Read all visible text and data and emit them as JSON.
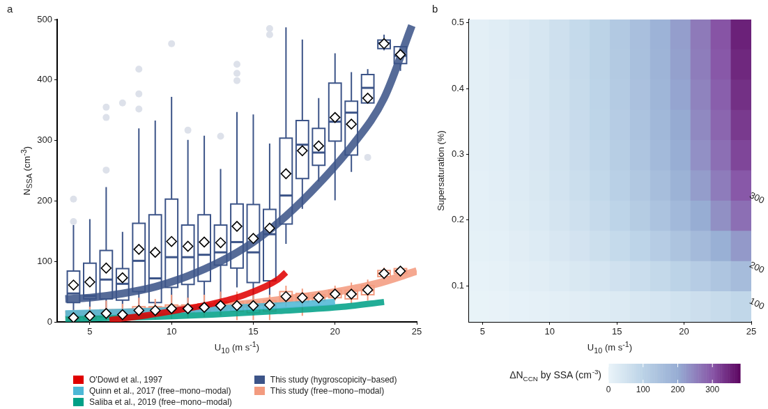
{
  "chart_data": [
    {
      "type": "box",
      "title": "a",
      "xlabel": "U$_{10}$ (m s$^{-1}$)",
      "ylabel": "N$_{SSA}$ (cm$^{-3}$)",
      "xlim": [
        3,
        25
      ],
      "xticks": [
        5,
        10,
        15,
        20,
        25
      ],
      "ylim": [
        0,
        500
      ],
      "yticks": [
        0,
        100,
        200,
        300,
        400,
        500
      ],
      "legend": "bottom",
      "series": [
        {
          "name": "O'Dowd et al., 1997",
          "type": "line",
          "color": "#e00000",
          "x": [
            6.2,
            8.5,
            10.5,
            12.5,
            14.5,
            16.5,
            17
          ],
          "values": [
            3,
            11,
            20,
            30,
            45,
            70,
            82
          ]
        },
        {
          "name": "Quinn et al., 2017 (free−mono−modal)",
          "type": "line",
          "color": "#4db8d6",
          "x": [
            3.5,
            8.5,
            12.5,
            16.5,
            20
          ],
          "values": [
            14,
            18,
            22,
            27,
            33
          ]
        },
        {
          "name": "Saliba et al., 2019 (free−mono−modal)",
          "type": "line",
          "color": "#00a087",
          "x": [
            3.5,
            8.5,
            12.5,
            16.5,
            20.5,
            23
          ],
          "values": [
            5,
            8,
            12,
            18,
            25,
            33
          ]
        },
        {
          "name": "This study (hygroscopicity−based)",
          "type": "box",
          "color": "#3c5488",
          "x": [
            4,
            5,
            6,
            7,
            8,
            9,
            10,
            11,
            12,
            13,
            14,
            15,
            16,
            17,
            18,
            19,
            20,
            21,
            22,
            23,
            24
          ],
          "boxes": [
            {
              "low": 7,
              "q1": 32,
              "median": 47,
              "q3": 84,
              "high": 160,
              "mean": 61,
              "outliers": [
                166,
                203
              ]
            },
            {
              "low": 11,
              "q1": 38,
              "median": 43,
              "q3": 97,
              "high": 170,
              "mean": 66
            },
            {
              "low": 15,
              "q1": 38,
              "median": 70,
              "q3": 118,
              "high": 223,
              "mean": 89,
              "outliers": [
                251,
                338,
                355
              ]
            },
            {
              "low": 11,
              "q1": 36,
              "median": 63,
              "q3": 88,
              "high": 149,
              "mean": 73,
              "outliers": [
                362
              ]
            },
            {
              "low": 15,
              "q1": 50,
              "median": 101,
              "q3": 163,
              "high": 320,
              "mean": 120,
              "outliers": [
                352,
                377,
                418
              ]
            },
            {
              "low": 11,
              "q1": 32,
              "median": 72,
              "q3": 177,
              "high": 333,
              "mean": 115
            },
            {
              "low": 15,
              "q1": 57,
              "median": 107,
              "q3": 203,
              "high": 372,
              "mean": 133,
              "outliers": [
                460
              ]
            },
            {
              "low": 11,
              "q1": 62,
              "median": 107,
              "q3": 160,
              "high": 301,
              "mean": 125,
              "outliers": [
                317
              ]
            },
            {
              "low": 15,
              "q1": 67,
              "median": 111,
              "q3": 177,
              "high": 308,
              "mean": 132
            },
            {
              "low": 11,
              "q1": 94,
              "median": 115,
              "q3": 160,
              "high": 253,
              "mean": 131,
              "outliers": [
                307
              ]
            },
            {
              "low": 57,
              "q1": 89,
              "median": 132,
              "q3": 195,
              "high": 347,
              "mean": 158,
              "outliers": [
                399,
                411,
                426
              ]
            },
            {
              "low": 11,
              "q1": 65,
              "median": 115,
              "q3": 194,
              "high": 343,
              "mean": 138
            },
            {
              "low": 30,
              "q1": 68,
              "median": 145,
              "q3": 186,
              "high": 295,
              "mean": 155,
              "outliers": [
                475,
                485
              ]
            },
            {
              "low": 129,
              "q1": 162,
              "median": 209,
              "q3": 304,
              "high": 487,
              "mean": 245
            },
            {
              "low": 187,
              "q1": 237,
              "median": 293,
              "q3": 333,
              "high": 467,
              "mean": 283
            },
            {
              "low": 232,
              "q1": 259,
              "median": 280,
              "q3": 320,
              "high": 370,
              "mean": 291
            },
            {
              "low": 201,
              "q1": 299,
              "median": 331,
              "q3": 395,
              "high": 444,
              "mean": 338
            },
            {
              "low": 248,
              "q1": 276,
              "median": 346,
              "q3": 365,
              "high": 413,
              "mean": 327
            },
            {
              "low": 362,
              "q1": 362,
              "median": 387,
              "q3": 409,
              "high": 418,
              "mean": 370,
              "outliers": [
                272
              ]
            },
            {
              "low": 449,
              "q1": 452,
              "median": 461,
              "q3": 466,
              "high": 475,
              "mean": 460
            },
            {
              "low": 415,
              "q1": 427,
              "median": 440,
              "q3": 455,
              "high": 455,
              "mean": 442
            }
          ]
        },
        {
          "name": "This study (free−mono−modal)",
          "type": "box",
          "color": "#f39b7f",
          "x": [
            4,
            5,
            6,
            7,
            8,
            9,
            10,
            11,
            12,
            13,
            14,
            15,
            16,
            17,
            18,
            19,
            20,
            21,
            22,
            23,
            24
          ],
          "boxes": [
            {
              "low": 0,
              "q1": 3,
              "median": 6,
              "q3": 10,
              "high": 20,
              "mean": 7
            },
            {
              "low": 0,
              "q1": 5,
              "median": 9,
              "q3": 14,
              "high": 25,
              "mean": 10
            },
            {
              "low": 2,
              "q1": 8,
              "median": 13,
              "q3": 20,
              "high": 35,
              "mean": 14
            },
            {
              "low": 2,
              "q1": 7,
              "median": 11,
              "q3": 17,
              "high": 30,
              "mean": 12
            },
            {
              "low": 5,
              "q1": 12,
              "median": 18,
              "q3": 25,
              "high": 40,
              "mean": 19
            },
            {
              "low": 4,
              "q1": 12,
              "median": 18,
              "q3": 25,
              "high": 38,
              "mean": 19
            },
            {
              "low": 5,
              "q1": 15,
              "median": 21,
              "q3": 28,
              "high": 45,
              "mean": 22
            },
            {
              "low": 6,
              "q1": 16,
              "median": 21,
              "q3": 28,
              "high": 40,
              "mean": 22
            },
            {
              "low": 8,
              "q1": 18,
              "median": 23,
              "q3": 30,
              "high": 45,
              "mean": 24
            },
            {
              "low": 10,
              "q1": 20,
              "median": 26,
              "q3": 33,
              "high": 50,
              "mean": 27
            },
            {
              "low": 3,
              "q1": 18,
              "median": 25,
              "q3": 33,
              "high": 50,
              "mean": 27
            },
            {
              "low": 3,
              "q1": 15,
              "median": 25,
              "q3": 33,
              "high": 45,
              "mean": 27
            },
            {
              "low": 3,
              "q1": 18,
              "median": 27,
              "q3": 35,
              "high": 45,
              "mean": 28
            },
            {
              "low": 25,
              "q1": 35,
              "median": 42,
              "q3": 50,
              "high": 60,
              "mean": 42
            },
            {
              "low": 10,
              "q1": 33,
              "median": 40,
              "q3": 47,
              "high": 55,
              "mean": 40
            },
            {
              "low": 30,
              "q1": 35,
              "median": 40,
              "q3": 45,
              "high": 50,
              "mean": 40
            },
            {
              "low": 35,
              "q1": 40,
              "median": 46,
              "q3": 52,
              "high": 60,
              "mean": 46
            },
            {
              "low": 30,
              "q1": 38,
              "median": 46,
              "q3": 52,
              "high": 65,
              "mean": 46
            },
            {
              "low": 35,
              "q1": 45,
              "median": 52,
              "q3": 60,
              "high": 70,
              "mean": 53
            },
            {
              "low": 70,
              "q1": 75,
              "median": 80,
              "q3": 85,
              "high": 90,
              "mean": 80
            },
            {
              "low": 75,
              "q1": 80,
              "median": 84,
              "q3": 88,
              "high": 92,
              "mean": 84
            }
          ]
        },
        {
          "type": "line",
          "color": "#3c5488",
          "x": [
            3.5,
            5,
            7,
            9,
            11,
            13,
            15,
            17,
            19,
            21,
            23,
            24.7
          ],
          "values": [
            38,
            40,
            47,
            58,
            76,
            100,
            132,
            175,
            228,
            290,
            370,
            490
          ]
        },
        {
          "type": "line",
          "color": "#f39b7f",
          "x": [
            3.5,
            7.5,
            10.5,
            13.5,
            16.5,
            19.5,
            22.5,
            25
          ],
          "values": [
            12,
            16,
            21,
            27,
            36,
            47,
            63,
            84
          ]
        }
      ]
    },
    {
      "type": "heatmap",
      "title": "b",
      "xlabel": "U$_{10}$ (m s$^{-1}$)",
      "ylabel": "Supersaturation (%)",
      "clabel": "ΔN$_{CCN}$ by SSA (cm$^{-3}$)",
      "xlim": [
        4,
        25
      ],
      "xticks": [
        5,
        10,
        15,
        20,
        25
      ],
      "ylim": [
        0.045,
        0.505
      ],
      "yticks": [
        0.1,
        0.2,
        0.3,
        0.4,
        0.5
      ],
      "clim": [
        0,
        380
      ],
      "cticks": [
        0,
        100,
        200,
        300
      ],
      "x": [
        4.75,
        6.25,
        7.75,
        9.25,
        10.75,
        12.25,
        13.75,
        15.25,
        16.75,
        18.25,
        19.75,
        21.25,
        22.75,
        24.25
      ],
      "y": [
        0.482,
        0.436,
        0.39,
        0.344,
        0.298,
        0.252,
        0.206,
        0.16,
        0.114,
        0.068
      ],
      "cells": [
        [
          15,
          21,
          32,
          43,
          60,
          79,
          100,
          125,
          151,
          183,
          217,
          259,
          302,
          352
        ],
        [
          15,
          20,
          32,
          43,
          60,
          78,
          99,
          123,
          149,
          180,
          214,
          255,
          298,
          346
        ],
        [
          15,
          20,
          31,
          42,
          58,
          76,
          96,
          120,
          145,
          176,
          209,
          249,
          290,
          338
        ],
        [
          14,
          19,
          30,
          41,
          56,
          74,
          94,
          116,
          141,
          171,
          203,
          242,
          282,
          328
        ],
        [
          14,
          19,
          29,
          39,
          54,
          71,
          90,
          112,
          136,
          165,
          196,
          233,
          272,
          316
        ],
        [
          13,
          18,
          27,
          37,
          51,
          67,
          85,
          106,
          128,
          155,
          184,
          219,
          256,
          298
        ],
        [
          12,
          16,
          25,
          34,
          47,
          61,
          77,
          96,
          117,
          142,
          168,
          200,
          234,
          272
        ],
        [
          10,
          13,
          20,
          28,
          38,
          50,
          64,
          79,
          96,
          116,
          138,
          164,
          192,
          223
        ],
        [
          7,
          9,
          14,
          20,
          27,
          36,
          45,
          56,
          68,
          82,
          98,
          116,
          136,
          158
        ],
        [
          4,
          5,
          8,
          11,
          15,
          20,
          25,
          31,
          38,
          46,
          55,
          65,
          76,
          88
        ]
      ],
      "annotations": [
        "100",
        "200",
        "300"
      ]
    }
  ]
}
